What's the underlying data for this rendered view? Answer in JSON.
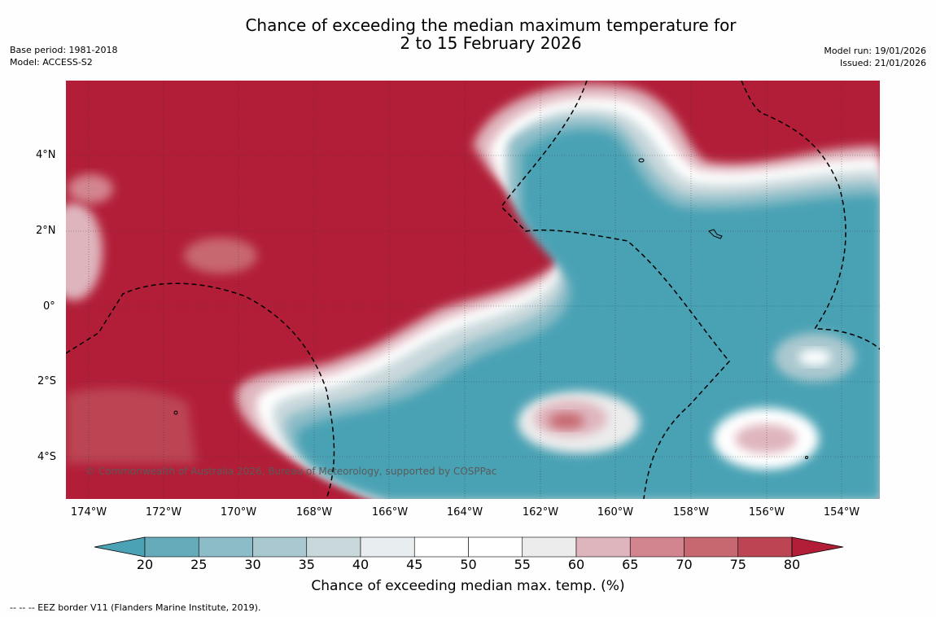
{
  "title_line1": "Chance of exceeding the median maximum temperature for",
  "title_line2": "2 to 15 February 2026",
  "meta_left": {
    "base_period": "Base period: 1981-2018",
    "model": "Model: ACCESS-S2"
  },
  "meta_right": {
    "model_run": "Model run: 19/01/2026",
    "issued": "Issued: 21/01/2026"
  },
  "map": {
    "lat_ticks": [
      "4°N",
      "2°N",
      "0°",
      "2°S",
      "4°S"
    ],
    "lon_ticks": [
      "174°W",
      "172°W",
      "170°W",
      "168°W",
      "166°W",
      "164°W",
      "162°W",
      "160°W",
      "158°W",
      "156°W",
      "154°W"
    ],
    "copyright": "© Commonwealth of Australia 2026, Bureau of Meteorology, supported by COSPPac"
  },
  "colorbar": {
    "ticks": [
      "20",
      "25",
      "30",
      "35",
      "40",
      "45",
      "50",
      "55",
      "60",
      "65",
      "70",
      "75",
      "80"
    ],
    "colors": [
      "#66abb9",
      "#8bbcc7",
      "#aac8cf",
      "#c9d8db",
      "#e8eeef",
      "#ffffff",
      "#ffffff",
      "#ececec",
      "#dfb5bd",
      "#d3858f",
      "#c76870",
      "#bc4453"
    ],
    "low_color": "#4aa2b4",
    "high_color": "#b21e38",
    "label": "Chance of exceeding median max. temp. (%)"
  },
  "legend_text": "--  --  -- EEZ border V11 (Flanders Marine Institute, 2019)."
}
